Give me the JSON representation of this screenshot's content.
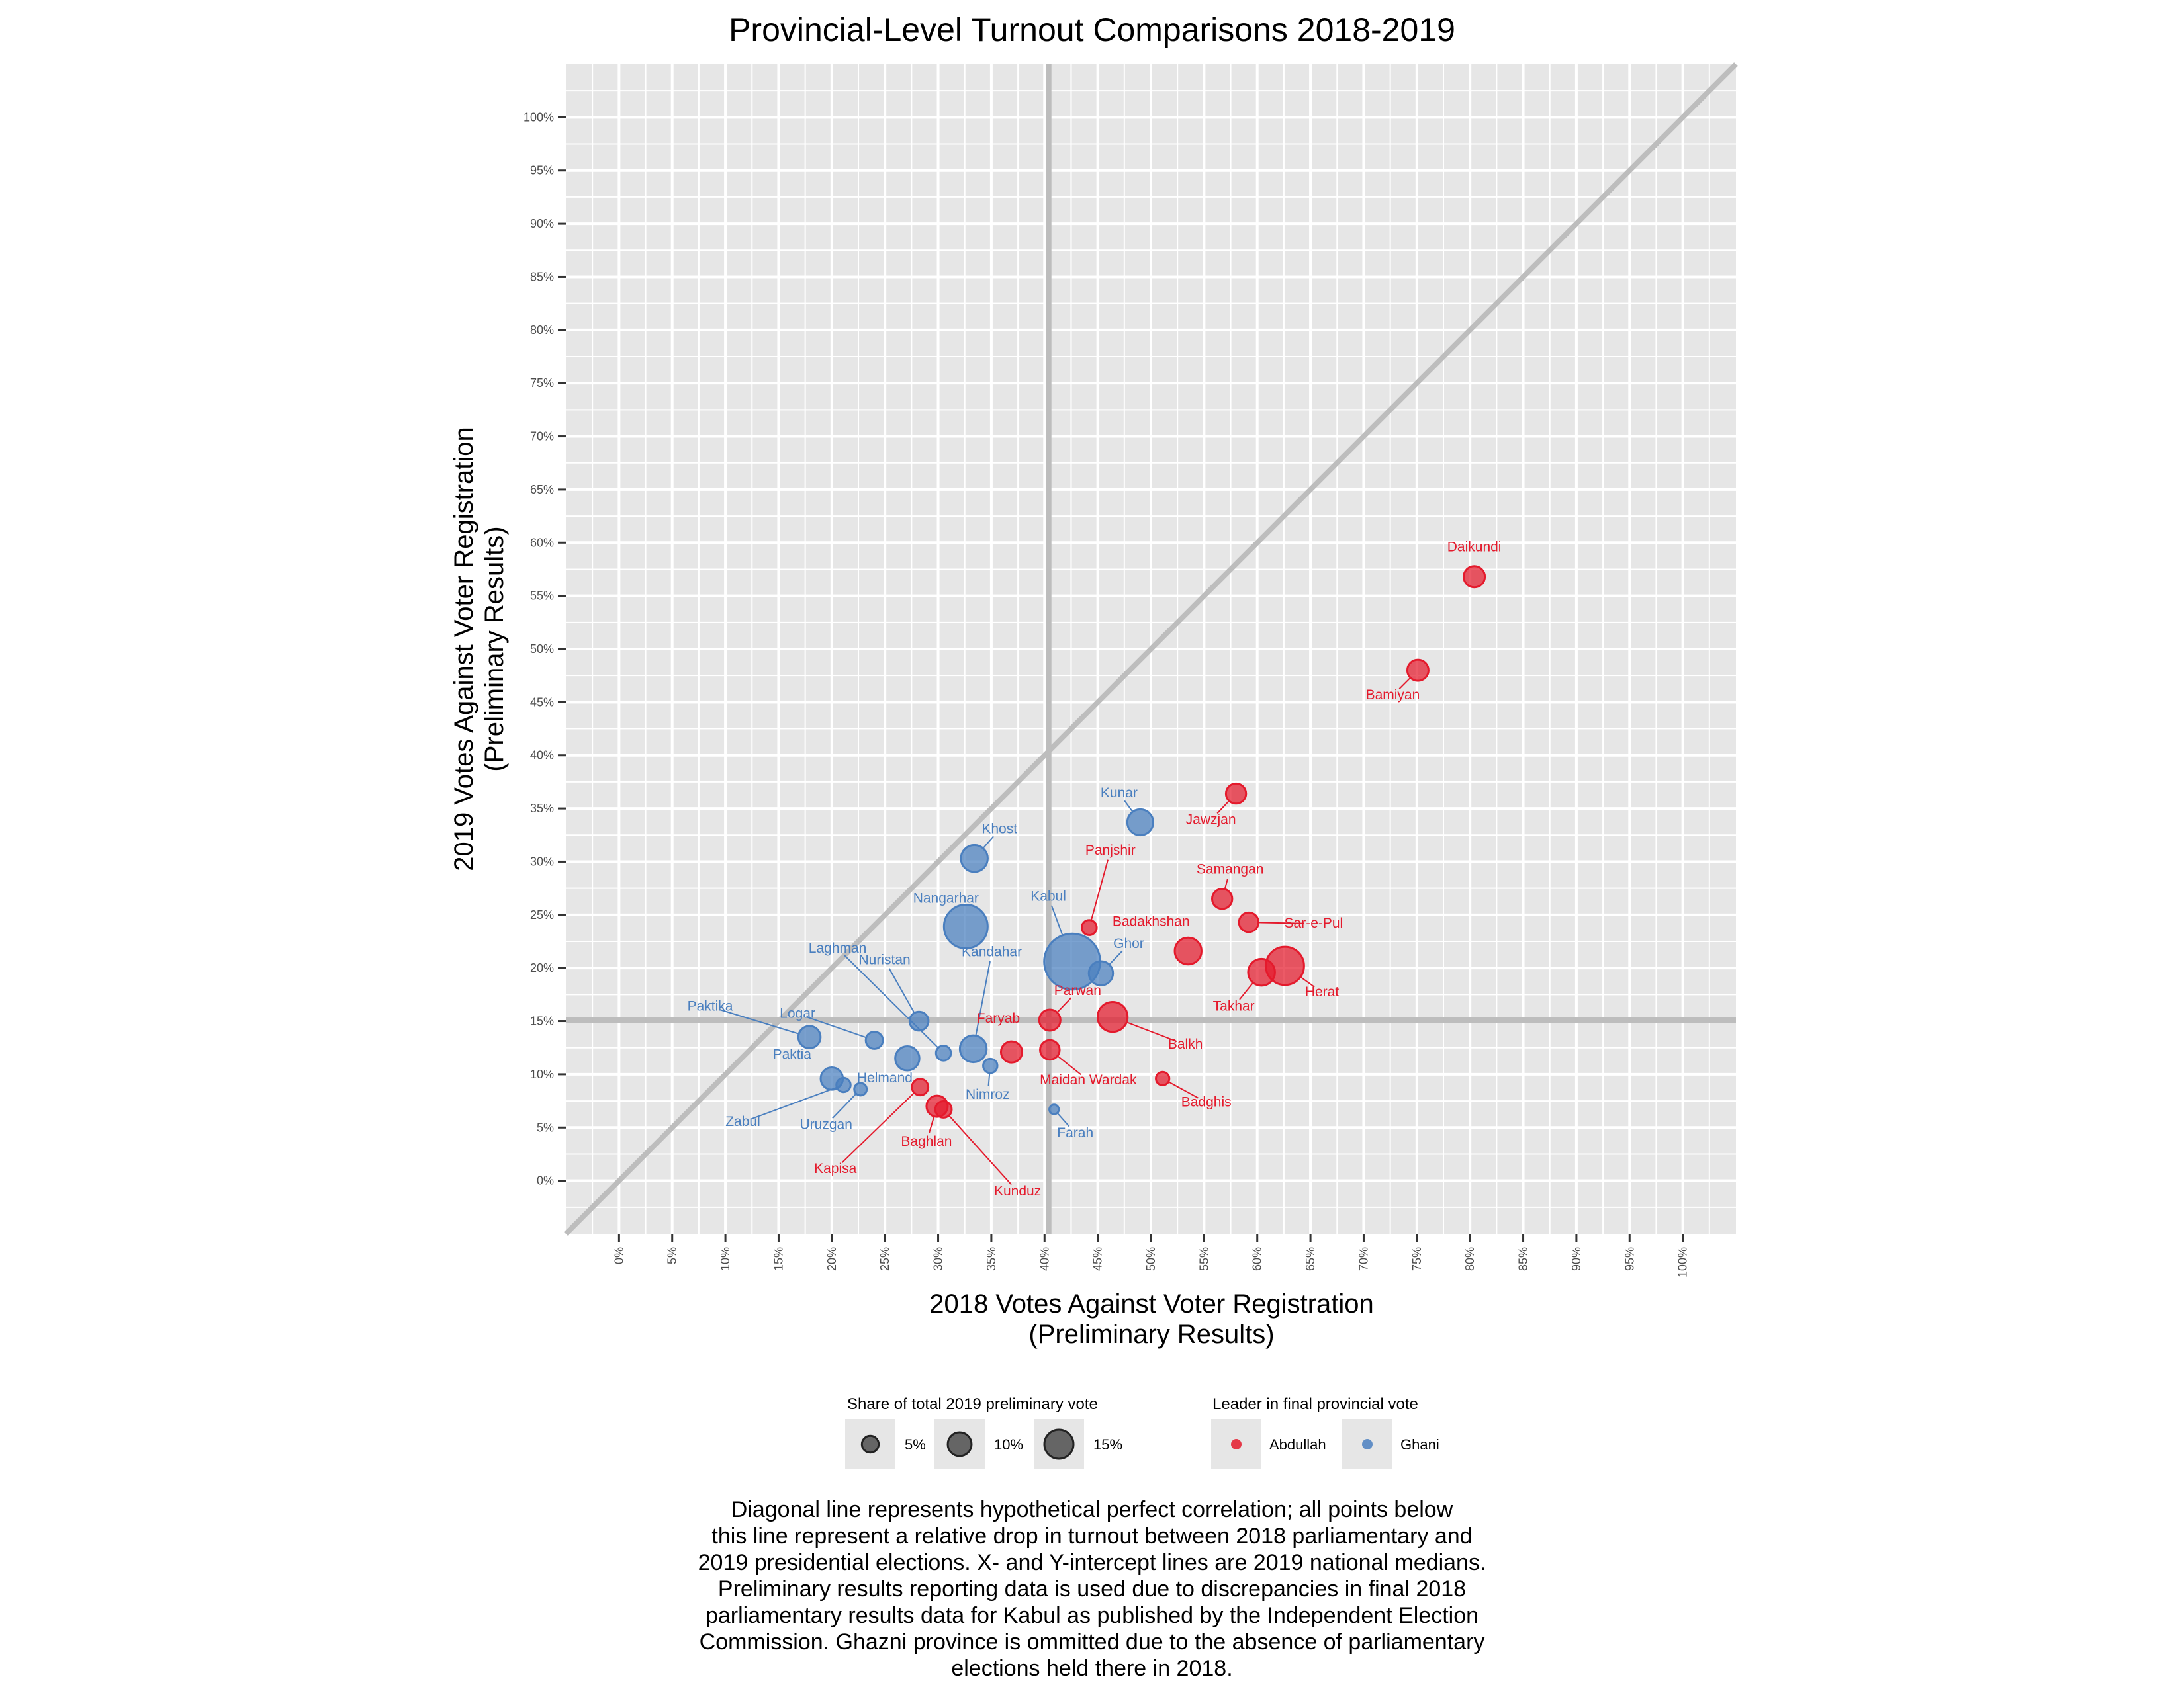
{
  "chart_data": {
    "type": "scatter",
    "title": "Provincial-Level Turnout Comparisons 2018-2019",
    "xlabel": [
      "2018 Votes Against Voter Registration",
      "(Preliminary Results)"
    ],
    "ylabel": [
      "2019 Votes Against Voter Registration",
      "(Preliminary Results)"
    ],
    "xlim": [
      -5,
      105
    ],
    "ylim": [
      -5,
      105
    ],
    "ticks": [
      "0%",
      "5%",
      "10%",
      "15%",
      "20%",
      "25%",
      "30%",
      "35%",
      "40%",
      "45%",
      "50%",
      "55%",
      "60%",
      "65%",
      "70%",
      "75%",
      "80%",
      "85%",
      "90%",
      "95%",
      "100%"
    ],
    "grid": true,
    "reference_lines": {
      "diagonal": "y = x",
      "x_median": 40.4,
      "y_median": 15.1
    },
    "colors": {
      "Abdullah": "#e41a2c",
      "Ghani": "#4a7fbf",
      "panel": "#e6e6e6",
      "gridline": "#ffffff",
      "refline": "#bdbdbd"
    },
    "series": [
      {
        "name": "Abdullah",
        "points": [
          {
            "label": "Daikundi",
            "x": 80.4,
            "y": 56.8,
            "size": 2.0
          },
          {
            "label": "Bamiyan",
            "x": 75.1,
            "y": 48.0,
            "size": 2.0
          },
          {
            "label": "Jawzjan",
            "x": 58.0,
            "y": 36.4,
            "size": 1.8
          },
          {
            "label": "Samangan",
            "x": 56.7,
            "y": 26.5,
            "size": 1.8
          },
          {
            "label": "Sar-e-Pul",
            "x": 59.2,
            "y": 24.3,
            "size": 1.7
          },
          {
            "label": "Herat",
            "x": 62.6,
            "y": 20.2,
            "size": 6.5
          },
          {
            "label": "Takhar",
            "x": 60.4,
            "y": 19.6,
            "size": 3.2
          },
          {
            "label": "Badakhshan",
            "x": 53.5,
            "y": 21.6,
            "size": 3.2
          },
          {
            "label": "Panjshir",
            "x": 44.2,
            "y": 23.8,
            "size": 1.0
          },
          {
            "label": "Balkh",
            "x": 46.4,
            "y": 15.4,
            "size": 4.0
          },
          {
            "label": "Parwan",
            "x": 40.5,
            "y": 15.1,
            "size": 2.0
          },
          {
            "label": "Faryab",
            "x": 36.9,
            "y": 12.1,
            "size": 2.0
          },
          {
            "label": "Maidan Wardak",
            "x": 40.5,
            "y": 12.3,
            "size": 1.7
          },
          {
            "label": "Badghis",
            "x": 51.1,
            "y": 9.6,
            "size": 0.8
          },
          {
            "label": "Kapisa",
            "x": 28.3,
            "y": 8.8,
            "size": 1.2
          },
          {
            "label": "Baghlan",
            "x": 29.9,
            "y": 7.0,
            "size": 2.0
          },
          {
            "label": "Kunduz",
            "x": 30.5,
            "y": 6.7,
            "size": 1.2
          }
        ]
      },
      {
        "name": "Ghani",
        "points": [
          {
            "label": "Kunar",
            "x": 49.0,
            "y": 33.7,
            "size": 3.0
          },
          {
            "label": "Khost",
            "x": 33.4,
            "y": 30.3,
            "size": 3.2
          },
          {
            "label": "Nangarhar",
            "x": 32.6,
            "y": 23.9,
            "size": 8.5
          },
          {
            "label": "Kabul",
            "x": 42.6,
            "y": 20.6,
            "size": 14.0
          },
          {
            "label": "Ghor",
            "x": 45.3,
            "y": 19.5,
            "size": 2.6
          },
          {
            "label": "Kandahar",
            "x": 33.3,
            "y": 12.4,
            "size": 3.2
          },
          {
            "label": "Laghman",
            "x": 30.5,
            "y": 12.0,
            "size": 1.0
          },
          {
            "label": "Nuristan",
            "x": 28.2,
            "y": 15.0,
            "size": 1.6
          },
          {
            "label": "Paktika",
            "x": 17.9,
            "y": 13.5,
            "size": 2.2
          },
          {
            "label": "Logar",
            "x": 24.0,
            "y": 13.2,
            "size": 1.3
          },
          {
            "label": "Helmand",
            "x": 27.1,
            "y": 11.5,
            "size": 2.6
          },
          {
            "label": "Nimroz",
            "x": 34.9,
            "y": 10.8,
            "size": 0.9
          },
          {
            "label": "Paktia",
            "x": 20.0,
            "y": 9.6,
            "size": 2.2
          },
          {
            "label": "Zabul",
            "x": 21.1,
            "y": 9.0,
            "size": 0.9
          },
          {
            "label": "Uruzgan",
            "x": 22.7,
            "y": 8.6,
            "size": 0.7
          },
          {
            "label": "Farah",
            "x": 40.9,
            "y": 6.7,
            "size": 0.4
          }
        ]
      }
    ],
    "legend": {
      "placement": "bottom",
      "size": {
        "title": "Share of total 2019 preliminary vote",
        "items": [
          {
            "label": "5%",
            "value": 5
          },
          {
            "label": "10%",
            "value": 10
          },
          {
            "label": "15%",
            "value": 15
          }
        ]
      },
      "color": {
        "title": "Leader in final provincial vote",
        "items": [
          {
            "label": "Abdullah",
            "series": "Abdullah"
          },
          {
            "label": "Ghani",
            "series": "Ghani"
          }
        ]
      }
    },
    "caption": [
      "Diagonal line represents hypothetical perfect correlation; all points below",
      "this line represent a relative drop in turnout between 2018 parliamentary and",
      "2019 presidential elections. X- and Y-intercept lines are 2019 national medians.",
      "Preliminary results reporting data is used due to discrepancies in final 2018",
      "parliamentary results data for Kabul as published by the Independent Election",
      "Commission. Ghazni province is ommitted due to the absence of parliamentary",
      "elections held there in 2018."
    ]
  }
}
